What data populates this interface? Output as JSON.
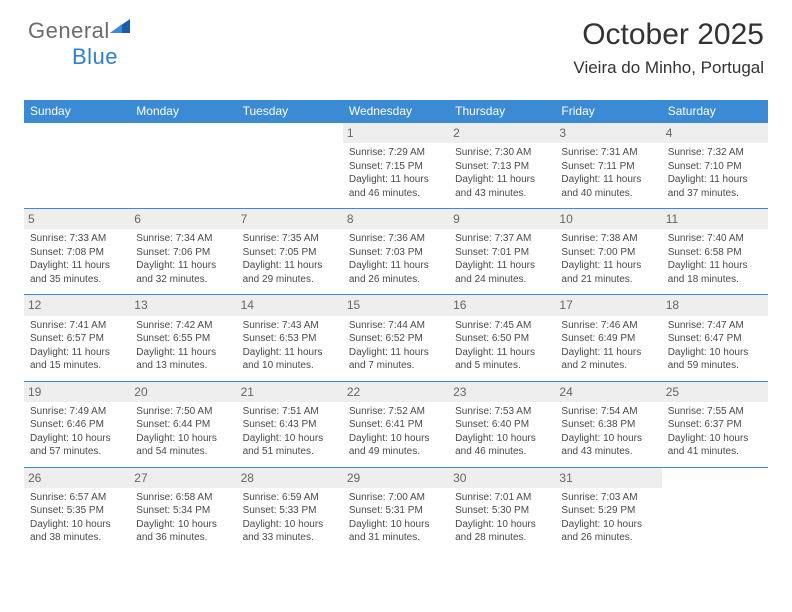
{
  "brand": {
    "part1": "General",
    "part2": "Blue"
  },
  "title": "October 2025",
  "location": "Vieira do Minho, Portugal",
  "colors": {
    "header_bg": "#3b8bd4",
    "daynum_bg": "#eeeeee",
    "border": "#3b8bd4",
    "text": "#4a4a4a",
    "brand_gray": "#6b6b6b",
    "brand_blue": "#2f7fd0"
  },
  "weekdays": [
    "Sunday",
    "Monday",
    "Tuesday",
    "Wednesday",
    "Thursday",
    "Friday",
    "Saturday"
  ],
  "weeks": [
    [
      null,
      null,
      null,
      {
        "n": "1",
        "sr": "Sunrise: 7:29 AM",
        "ss": "Sunset: 7:15 PM",
        "d1": "Daylight: 11 hours",
        "d2": "and 46 minutes."
      },
      {
        "n": "2",
        "sr": "Sunrise: 7:30 AM",
        "ss": "Sunset: 7:13 PM",
        "d1": "Daylight: 11 hours",
        "d2": "and 43 minutes."
      },
      {
        "n": "3",
        "sr": "Sunrise: 7:31 AM",
        "ss": "Sunset: 7:11 PM",
        "d1": "Daylight: 11 hours",
        "d2": "and 40 minutes."
      },
      {
        "n": "4",
        "sr": "Sunrise: 7:32 AM",
        "ss": "Sunset: 7:10 PM",
        "d1": "Daylight: 11 hours",
        "d2": "and 37 minutes."
      }
    ],
    [
      {
        "n": "5",
        "sr": "Sunrise: 7:33 AM",
        "ss": "Sunset: 7:08 PM",
        "d1": "Daylight: 11 hours",
        "d2": "and 35 minutes."
      },
      {
        "n": "6",
        "sr": "Sunrise: 7:34 AM",
        "ss": "Sunset: 7:06 PM",
        "d1": "Daylight: 11 hours",
        "d2": "and 32 minutes."
      },
      {
        "n": "7",
        "sr": "Sunrise: 7:35 AM",
        "ss": "Sunset: 7:05 PM",
        "d1": "Daylight: 11 hours",
        "d2": "and 29 minutes."
      },
      {
        "n": "8",
        "sr": "Sunrise: 7:36 AM",
        "ss": "Sunset: 7:03 PM",
        "d1": "Daylight: 11 hours",
        "d2": "and 26 minutes."
      },
      {
        "n": "9",
        "sr": "Sunrise: 7:37 AM",
        "ss": "Sunset: 7:01 PM",
        "d1": "Daylight: 11 hours",
        "d2": "and 24 minutes."
      },
      {
        "n": "10",
        "sr": "Sunrise: 7:38 AM",
        "ss": "Sunset: 7:00 PM",
        "d1": "Daylight: 11 hours",
        "d2": "and 21 minutes."
      },
      {
        "n": "11",
        "sr": "Sunrise: 7:40 AM",
        "ss": "Sunset: 6:58 PM",
        "d1": "Daylight: 11 hours",
        "d2": "and 18 minutes."
      }
    ],
    [
      {
        "n": "12",
        "sr": "Sunrise: 7:41 AM",
        "ss": "Sunset: 6:57 PM",
        "d1": "Daylight: 11 hours",
        "d2": "and 15 minutes."
      },
      {
        "n": "13",
        "sr": "Sunrise: 7:42 AM",
        "ss": "Sunset: 6:55 PM",
        "d1": "Daylight: 11 hours",
        "d2": "and 13 minutes."
      },
      {
        "n": "14",
        "sr": "Sunrise: 7:43 AM",
        "ss": "Sunset: 6:53 PM",
        "d1": "Daylight: 11 hours",
        "d2": "and 10 minutes."
      },
      {
        "n": "15",
        "sr": "Sunrise: 7:44 AM",
        "ss": "Sunset: 6:52 PM",
        "d1": "Daylight: 11 hours",
        "d2": "and 7 minutes."
      },
      {
        "n": "16",
        "sr": "Sunrise: 7:45 AM",
        "ss": "Sunset: 6:50 PM",
        "d1": "Daylight: 11 hours",
        "d2": "and 5 minutes."
      },
      {
        "n": "17",
        "sr": "Sunrise: 7:46 AM",
        "ss": "Sunset: 6:49 PM",
        "d1": "Daylight: 11 hours",
        "d2": "and 2 minutes."
      },
      {
        "n": "18",
        "sr": "Sunrise: 7:47 AM",
        "ss": "Sunset: 6:47 PM",
        "d1": "Daylight: 10 hours",
        "d2": "and 59 minutes."
      }
    ],
    [
      {
        "n": "19",
        "sr": "Sunrise: 7:49 AM",
        "ss": "Sunset: 6:46 PM",
        "d1": "Daylight: 10 hours",
        "d2": "and 57 minutes."
      },
      {
        "n": "20",
        "sr": "Sunrise: 7:50 AM",
        "ss": "Sunset: 6:44 PM",
        "d1": "Daylight: 10 hours",
        "d2": "and 54 minutes."
      },
      {
        "n": "21",
        "sr": "Sunrise: 7:51 AM",
        "ss": "Sunset: 6:43 PM",
        "d1": "Daylight: 10 hours",
        "d2": "and 51 minutes."
      },
      {
        "n": "22",
        "sr": "Sunrise: 7:52 AM",
        "ss": "Sunset: 6:41 PM",
        "d1": "Daylight: 10 hours",
        "d2": "and 49 minutes."
      },
      {
        "n": "23",
        "sr": "Sunrise: 7:53 AM",
        "ss": "Sunset: 6:40 PM",
        "d1": "Daylight: 10 hours",
        "d2": "and 46 minutes."
      },
      {
        "n": "24",
        "sr": "Sunrise: 7:54 AM",
        "ss": "Sunset: 6:38 PM",
        "d1": "Daylight: 10 hours",
        "d2": "and 43 minutes."
      },
      {
        "n": "25",
        "sr": "Sunrise: 7:55 AM",
        "ss": "Sunset: 6:37 PM",
        "d1": "Daylight: 10 hours",
        "d2": "and 41 minutes."
      }
    ],
    [
      {
        "n": "26",
        "sr": "Sunrise: 6:57 AM",
        "ss": "Sunset: 5:35 PM",
        "d1": "Daylight: 10 hours",
        "d2": "and 38 minutes."
      },
      {
        "n": "27",
        "sr": "Sunrise: 6:58 AM",
        "ss": "Sunset: 5:34 PM",
        "d1": "Daylight: 10 hours",
        "d2": "and 36 minutes."
      },
      {
        "n": "28",
        "sr": "Sunrise: 6:59 AM",
        "ss": "Sunset: 5:33 PM",
        "d1": "Daylight: 10 hours",
        "d2": "and 33 minutes."
      },
      {
        "n": "29",
        "sr": "Sunrise: 7:00 AM",
        "ss": "Sunset: 5:31 PM",
        "d1": "Daylight: 10 hours",
        "d2": "and 31 minutes."
      },
      {
        "n": "30",
        "sr": "Sunrise: 7:01 AM",
        "ss": "Sunset: 5:30 PM",
        "d1": "Daylight: 10 hours",
        "d2": "and 28 minutes."
      },
      {
        "n": "31",
        "sr": "Sunrise: 7:03 AM",
        "ss": "Sunset: 5:29 PM",
        "d1": "Daylight: 10 hours",
        "d2": "and 26 minutes."
      },
      null
    ]
  ]
}
